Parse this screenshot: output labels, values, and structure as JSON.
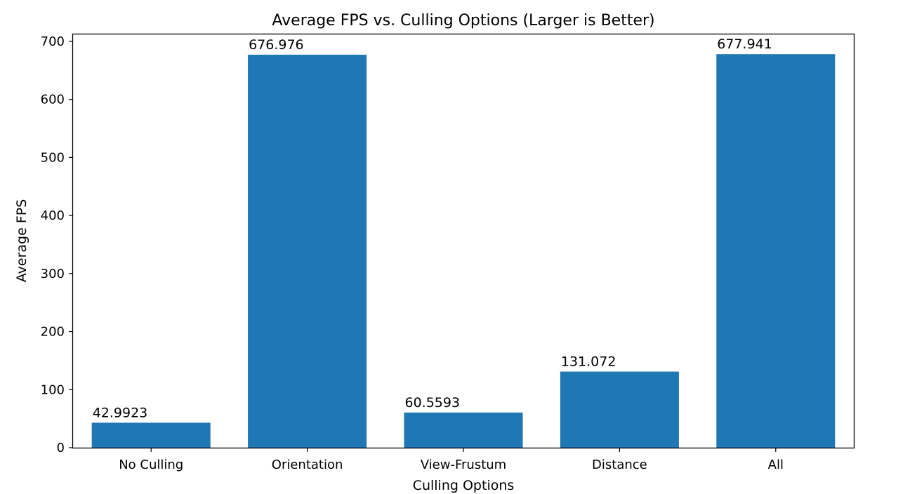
{
  "chart_data": {
    "type": "bar",
    "title": "Average FPS vs. Culling Options (Larger is Better)",
    "xlabel": "Culling Options",
    "ylabel": "Average FPS",
    "categories": [
      "No Culling",
      "Orientation",
      "View-Frustum",
      "Distance",
      "All"
    ],
    "values": [
      42.9923,
      676.976,
      60.5593,
      131.072,
      677.941
    ],
    "data_labels": [
      "42.9923",
      "676.976",
      "60.5593",
      "131.072",
      "677.941"
    ],
    "ylim": [
      0,
      712
    ],
    "yticks": [
      0,
      100,
      200,
      300,
      400,
      500,
      600,
      700
    ],
    "grid": false,
    "bar_color": "#1f77b4"
  }
}
